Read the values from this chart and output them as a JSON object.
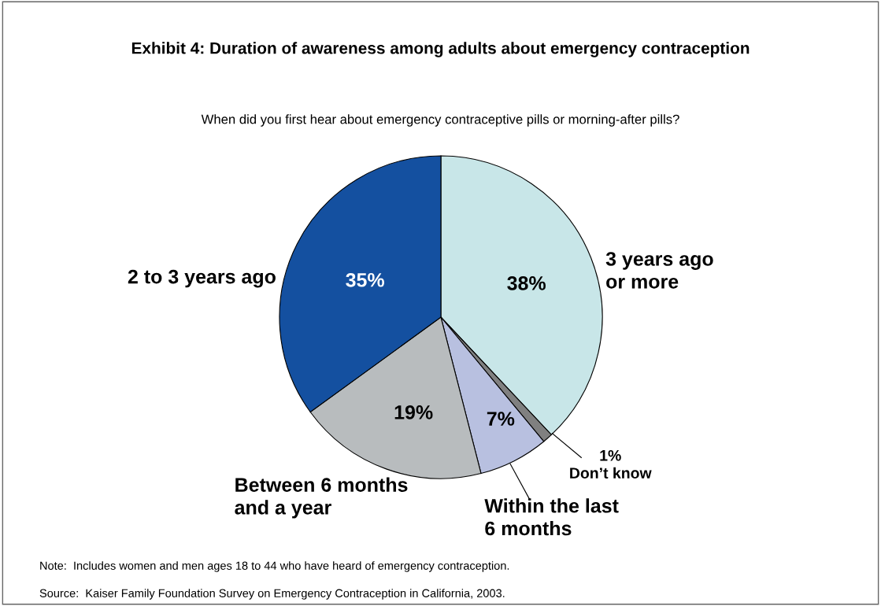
{
  "chart_data": {
    "type": "pie",
    "title": "Exhibit 4: Duration of awareness among adults about emergency contraception",
    "subtitle": "When did you first hear about emergency contraceptive pills or morning-after pills?",
    "categories": [
      "3 years ago\nor more",
      "Don’t know",
      "Within the last\n6 months",
      "Between 6 months\nand a year",
      "2 to 3 years ago"
    ],
    "values": [
      38,
      1,
      7,
      19,
      35
    ],
    "colors": [
      "#c8e6e8",
      "#808080",
      "#b8c0e0",
      "#b8bcbe",
      "#1450a0"
    ],
    "value_labels": [
      "38%",
      "1%",
      "7%",
      "19%",
      "35%"
    ],
    "annotations": [
      "Note:  Includes women and men ages 18 to 44 who have heard of emergency contraception.",
      "Source:  Kaiser Family Foundation Survey on Emergency Contraception in California, 2003."
    ]
  }
}
